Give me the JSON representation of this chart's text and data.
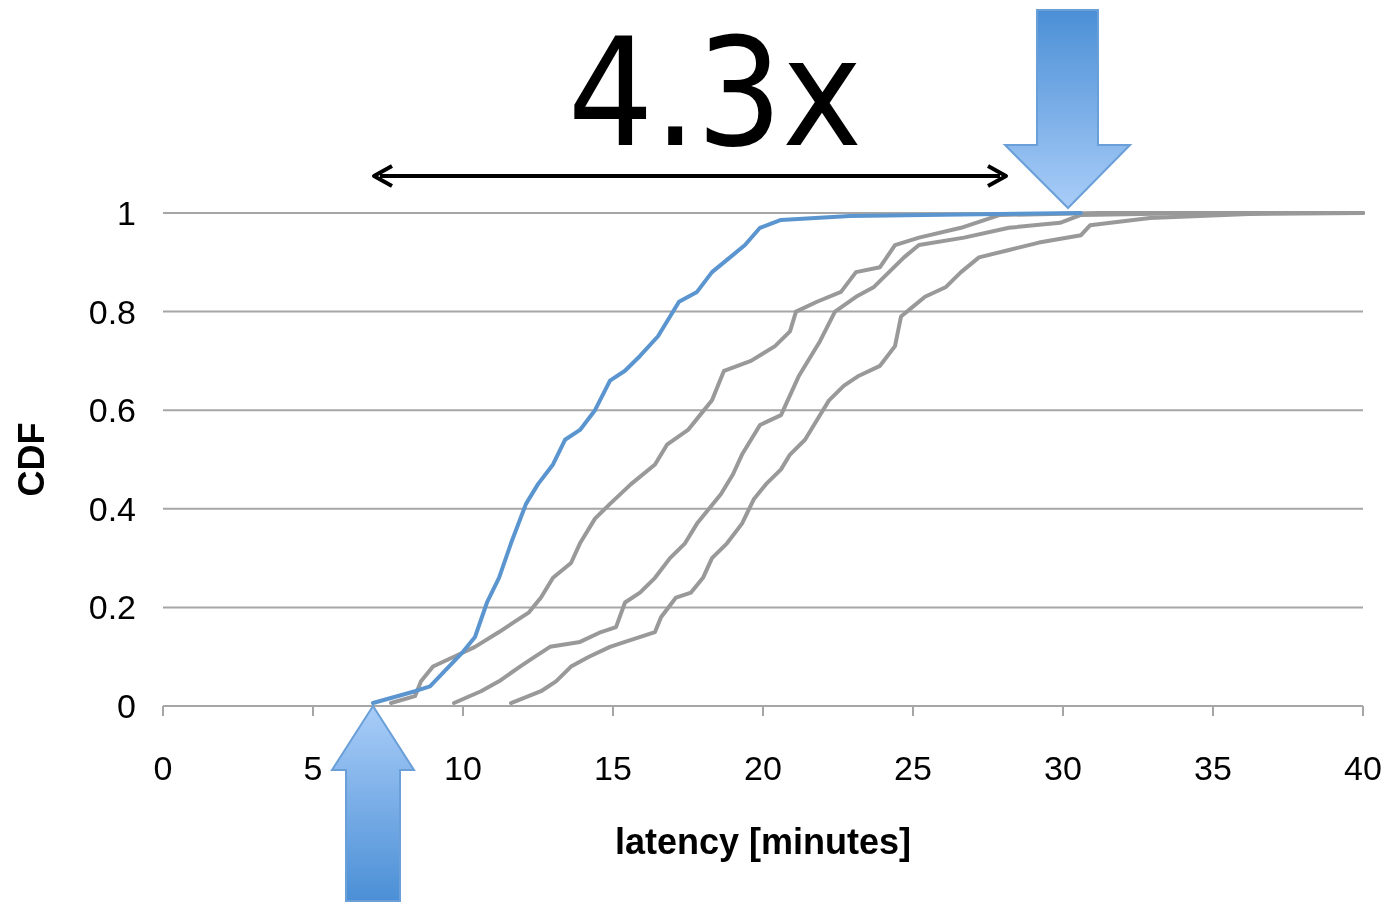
{
  "chart_data": {
    "type": "line",
    "xlabel": "latency [minutes]",
    "ylabel": "CDF",
    "annotations": [
      "4.3x"
    ],
    "xlim": [
      0,
      40
    ],
    "xticks": [
      0,
      5,
      10,
      15,
      20,
      25,
      30,
      35,
      40
    ],
    "ylim": [
      0,
      1
    ],
    "yticks": [
      0,
      0.2,
      0.4,
      0.6,
      0.8,
      1
    ],
    "grid": "y",
    "marker": "none",
    "line_style": "solid",
    "series": [
      {
        "color": "#999999",
        "x": [
          7.6,
          8.4,
          8.6,
          9.0,
          9.7,
          10.4,
          11.2,
          11.7,
          12.2,
          12.6,
          13.0,
          13.6,
          13.9,
          14.4,
          14.9,
          15.6,
          16.4,
          16.8,
          17.5,
          17.9,
          18.3,
          18.7,
          19.6,
          20.4,
          20.9,
          21.1,
          21.8,
          22.6,
          23.1,
          23.9,
          24.4,
          25.2,
          26.6,
          27.9,
          31.2,
          40
        ],
        "values": [
          0.006,
          0.02,
          0.05,
          0.08,
          0.1,
          0.12,
          0.15,
          0.17,
          0.19,
          0.22,
          0.26,
          0.29,
          0.33,
          0.38,
          0.41,
          0.45,
          0.49,
          0.53,
          0.56,
          0.59,
          0.62,
          0.68,
          0.7,
          0.73,
          0.76,
          0.8,
          0.82,
          0.84,
          0.88,
          0.89,
          0.935,
          0.95,
          0.97,
          0.996,
          1,
          1
        ]
      },
      {
        "color": "#999999",
        "x": [
          9.7,
          10.6,
          11.2,
          11.9,
          12.4,
          12.9,
          13.9,
          14.6,
          15.1,
          15.4,
          15.9,
          16.4,
          16.9,
          17.4,
          17.8,
          18.2,
          18.6,
          19.0,
          19.3,
          19.6,
          19.9,
          20.6,
          20.9,
          21.2,
          21.6,
          21.9,
          22.4,
          23.1,
          23.7,
          24.2,
          24.7,
          25.2,
          26.7,
          28.2,
          29.9,
          30.6,
          34.6,
          40
        ],
        "values": [
          0.006,
          0.03,
          0.05,
          0.08,
          0.1,
          0.12,
          0.13,
          0.15,
          0.16,
          0.21,
          0.23,
          0.26,
          0.3,
          0.33,
          0.37,
          0.4,
          0.43,
          0.47,
          0.51,
          0.54,
          0.57,
          0.59,
          0.63,
          0.67,
          0.71,
          0.74,
          0.8,
          0.83,
          0.85,
          0.88,
          0.91,
          0.935,
          0.95,
          0.97,
          0.98,
          0.996,
          1,
          1
        ]
      },
      {
        "color": "#999999",
        "x": [
          11.6,
          12.6,
          13.1,
          13.6,
          14.2,
          14.9,
          15.4,
          16.4,
          16.6,
          17.1,
          17.6,
          18.0,
          18.3,
          18.8,
          19.3,
          19.7,
          20.1,
          20.6,
          20.9,
          21.4,
          21.8,
          22.2,
          22.7,
          23.2,
          23.9,
          24.4,
          24.6,
          25.0,
          25.4,
          26.1,
          26.6,
          27.2,
          28.2,
          29.2,
          30.6,
          30.9,
          32.9,
          36.2,
          40
        ],
        "values": [
          0.006,
          0.03,
          0.05,
          0.08,
          0.1,
          0.12,
          0.13,
          0.15,
          0.18,
          0.22,
          0.23,
          0.26,
          0.3,
          0.33,
          0.37,
          0.42,
          0.45,
          0.48,
          0.51,
          0.54,
          0.58,
          0.62,
          0.65,
          0.67,
          0.69,
          0.73,
          0.79,
          0.81,
          0.83,
          0.85,
          0.88,
          0.91,
          0.925,
          0.94,
          0.955,
          0.975,
          0.99,
          0.998,
          1
        ]
      },
      {
        "color": "#5b95cf",
        "x": [
          7.0,
          8.4,
          8.9,
          10.0,
          10.4,
          10.8,
          11.2,
          11.6,
          12.1,
          12.5,
          13.0,
          13.4,
          13.9,
          14.4,
          14.9,
          15.4,
          15.9,
          16.5,
          16.8,
          17.2,
          17.8,
          18.3,
          18.9,
          19.4,
          19.9,
          20.6,
          22.9,
          27.9,
          30.6
        ],
        "values": [
          0.006,
          0.03,
          0.04,
          0.11,
          0.14,
          0.21,
          0.26,
          0.33,
          0.41,
          0.45,
          0.49,
          0.54,
          0.56,
          0.6,
          0.66,
          0.68,
          0.71,
          0.75,
          0.78,
          0.82,
          0.84,
          0.88,
          0.91,
          0.935,
          0.97,
          0.986,
          0.994,
          0.998,
          1
        ]
      }
    ]
  }
}
